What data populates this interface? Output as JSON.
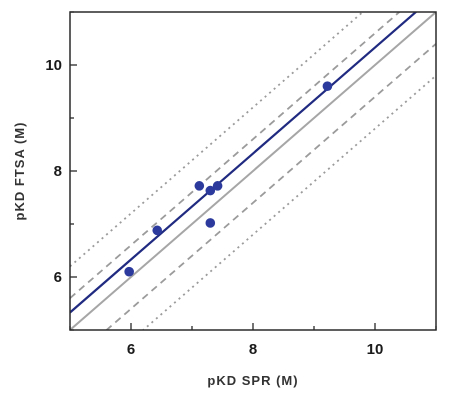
{
  "chart_data": {
    "type": "scatter",
    "title": "",
    "xlabel": "pKD SPR (M)",
    "ylabel": "pKD FTSA (M)",
    "xlim": [
      5,
      11
    ],
    "ylim": [
      5,
      11
    ],
    "xticks": [
      6,
      8,
      10
    ],
    "yticks": [
      6,
      8,
      10
    ],
    "grid": false,
    "legend": "none",
    "points": [
      {
        "x": 5.97,
        "y": 6.1
      },
      {
        "x": 6.43,
        "y": 6.88
      },
      {
        "x": 7.12,
        "y": 7.72
      },
      {
        "x": 7.3,
        "y": 7.63
      },
      {
        "x": 7.42,
        "y": 7.72
      },
      {
        "x": 7.3,
        "y": 7.02
      },
      {
        "x": 9.22,
        "y": 9.6
      }
    ],
    "lines": [
      {
        "role": "fit",
        "slope": 1.0,
        "intercept": 0.33,
        "style": "solid",
        "color": "#1f2a80"
      },
      {
        "role": "identity",
        "slope": 1.0,
        "intercept": 0.0,
        "style": "solid",
        "color": "#a6a6a6"
      },
      {
        "role": "band-inner-upper",
        "slope": 1.0,
        "intercept": 0.6,
        "style": "dashed",
        "color": "#9b9b9b"
      },
      {
        "role": "band-inner-lower",
        "slope": 1.0,
        "intercept": -0.6,
        "style": "dashed",
        "color": "#9b9b9b"
      },
      {
        "role": "band-outer-upper",
        "slope": 1.0,
        "intercept": 1.2,
        "style": "dotted",
        "color": "#9b9b9b"
      },
      {
        "role": "band-outer-lower",
        "slope": 1.0,
        "intercept": -1.2,
        "style": "dotted",
        "color": "#9b9b9b"
      }
    ],
    "point_color": "#2b3a9c"
  }
}
